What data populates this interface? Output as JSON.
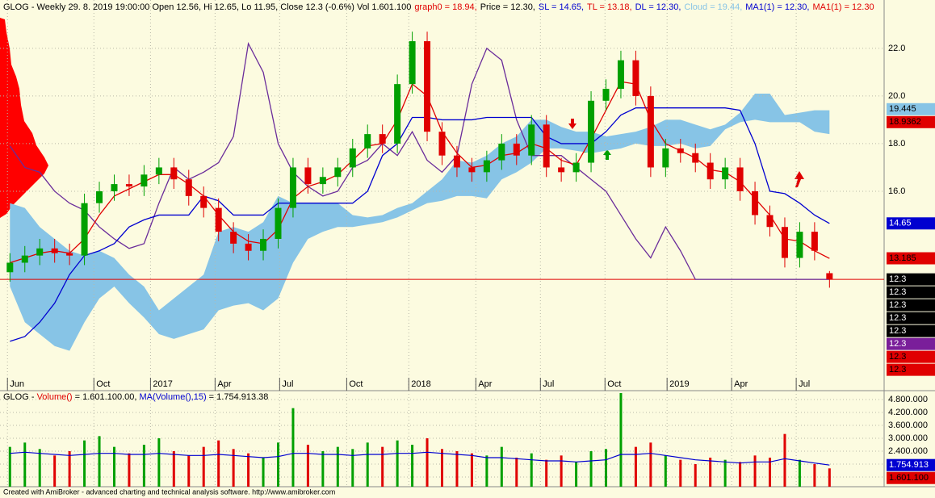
{
  "chart_data": [
    {
      "type": "candlestick",
      "header": "GLOG - Weekly 29. 8. 2019 19:00:00 Open 12.56, Hi 12.65, Lo 11.95, Close 12.3 (-0.6%) Vol 1.601.100",
      "header_items": [
        {
          "text": "graph0 = 18.94,",
          "color": "#e00000"
        },
        {
          "text": "Price = 12.30,",
          "color": "#000000"
        },
        {
          "text": "SL = 14.65,",
          "color": "#0000d0"
        },
        {
          "text": "TL = 13.18,",
          "color": "#e00000"
        },
        {
          "text": "DL = 12.30,",
          "color": "#0000d0"
        },
        {
          "text": "Cloud = 19.44,",
          "color": "#87c4e6"
        },
        {
          "text": "MA1(1) = 12.30,",
          "color": "#0000d0"
        },
        {
          "text": "MA1(1) = 12.30",
          "color": "#e00000"
        }
      ],
      "x": [
        1,
        4,
        7,
        10,
        13,
        16,
        19,
        22,
        25,
        28,
        31,
        34,
        37,
        40,
        43,
        46,
        49,
        52,
        55,
        58,
        61,
        64,
        67,
        70,
        73,
        76,
        79,
        82,
        85,
        88,
        91,
        94,
        97,
        100,
        103,
        106,
        109,
        112,
        115,
        118,
        121,
        124,
        127,
        130,
        133,
        136,
        139,
        142,
        145,
        148,
        151,
        154,
        157,
        160,
        163,
        166
      ],
      "open": [
        12.6,
        13.0,
        13.3,
        13.6,
        13.4,
        13.3,
        15.5,
        16.0,
        16.3,
        16.2,
        16.7,
        17.0,
        16.5,
        15.8,
        15.3,
        14.3,
        13.8,
        13.5,
        14.0,
        15.3,
        17.0,
        16.3,
        16.6,
        17.0,
        17.8,
        18.4,
        18.0,
        20.5,
        22.3,
        18.5,
        17.5,
        17.0,
        16.8,
        17.3,
        18.0,
        17.5,
        18.8,
        17.0,
        16.8,
        17.2,
        19.8,
        20.3,
        21.5,
        20.0,
        17.0,
        17.8,
        17.6,
        17.2,
        16.5,
        17.0,
        16.0,
        15.0,
        14.5,
        13.2,
        14.3,
        12.56
      ],
      "high": [
        13.4,
        13.7,
        14.0,
        14.0,
        13.8,
        15.9,
        16.4,
        16.7,
        16.7,
        17.1,
        17.4,
        17.4,
        16.9,
        16.2,
        15.7,
        14.7,
        14.2,
        14.4,
        15.7,
        17.4,
        17.4,
        17.0,
        17.4,
        18.2,
        18.8,
        18.8,
        20.9,
        22.7,
        22.7,
        18.9,
        17.9,
        17.4,
        17.7,
        18.4,
        18.4,
        19.2,
        19.2,
        17.4,
        17.6,
        20.2,
        20.7,
        21.9,
        21.9,
        20.4,
        18.2,
        18.2,
        18.0,
        17.6,
        17.4,
        17.4,
        16.4,
        15.4,
        14.9,
        14.7,
        14.7,
        12.65
      ],
      "low": [
        12.2,
        12.6,
        12.9,
        13.0,
        12.9,
        12.9,
        15.1,
        15.6,
        15.8,
        15.8,
        16.3,
        16.1,
        15.4,
        14.9,
        13.9,
        13.4,
        13.1,
        13.1,
        13.6,
        14.9,
        15.9,
        15.9,
        16.2,
        16.6,
        17.4,
        17.6,
        17.6,
        20.1,
        18.1,
        17.1,
        16.6,
        16.4,
        16.4,
        16.9,
        17.1,
        17.1,
        16.6,
        16.4,
        16.4,
        16.8,
        19.4,
        19.9,
        19.6,
        16.6,
        16.6,
        17.2,
        16.8,
        16.1,
        16.1,
        15.6,
        14.6,
        14.1,
        12.8,
        12.8,
        13.1,
        11.95
      ],
      "close": [
        13.0,
        13.3,
        13.6,
        13.4,
        13.3,
        15.5,
        16.0,
        16.3,
        16.2,
        16.7,
        17.0,
        16.5,
        15.8,
        15.3,
        14.3,
        13.8,
        13.5,
        14.0,
        15.3,
        17.0,
        16.3,
        16.6,
        17.0,
        17.8,
        18.4,
        18.0,
        20.5,
        22.3,
        18.5,
        17.5,
        17.0,
        16.8,
        17.3,
        18.0,
        17.5,
        18.8,
        17.0,
        16.8,
        17.2,
        19.8,
        20.3,
        21.5,
        20.0,
        17.0,
        17.8,
        17.6,
        17.2,
        16.5,
        17.0,
        16.0,
        15.0,
        14.5,
        13.2,
        14.3,
        13.5,
        12.3
      ],
      "up_color": "#00a000",
      "down_color": "#e00000",
      "cloud": {
        "color": "#87c4e6",
        "upper": [
          15.5,
          15.3,
          14.5,
          14.0,
          13.5,
          13.3,
          13.5,
          13.2,
          12.5,
          12.0,
          11.0,
          11.5,
          12.0,
          12.5,
          14.3,
          14.5,
          14.3,
          14.7,
          15.8,
          15.5,
          15.5,
          15.5,
          15.5,
          15.0,
          14.9,
          15.0,
          15.3,
          15.5,
          16.0,
          16.5,
          17.3,
          17.2,
          17.5,
          18.0,
          18.3,
          19.0,
          19.0,
          18.7,
          18.5,
          18.5,
          18.3,
          18.4,
          18.5,
          18.7,
          19.0,
          19.0,
          18.8,
          18.6,
          18.8,
          19.3,
          20.1,
          20.1,
          19.2,
          19.3,
          19.4,
          19.4
        ],
        "lower": [
          12.0,
          10.5,
          10.0,
          9.5,
          9.3,
          10.5,
          11.5,
          12.0,
          11.3,
          10.7,
          10.0,
          9.8,
          10.0,
          10.2,
          11.0,
          11.2,
          11.3,
          11.0,
          11.5,
          13.0,
          14.0,
          14.3,
          14.5,
          14.5,
          14.6,
          14.7,
          14.9,
          15.2,
          15.5,
          15.6,
          15.8,
          15.8,
          15.7,
          16.5,
          16.8,
          17.2,
          17.8,
          17.8,
          17.7,
          17.6,
          17.7,
          17.8,
          18.0,
          17.9,
          17.9,
          18.0,
          17.8,
          17.9,
          18.6,
          18.9,
          19.0,
          18.9,
          18.9,
          18.9,
          18.5,
          18.4
        ]
      },
      "series": [
        {
          "color": "#6a2c9a",
          "values": [
            17.9,
            17.0,
            16.8,
            16.0,
            15.5,
            15.2,
            14.5,
            14.0,
            13.6,
            13.8,
            15.5,
            17.0,
            16.5,
            16.8,
            17.2,
            18.3,
            22.2,
            21.0,
            18.0,
            16.8,
            16.2,
            15.8,
            16.0,
            17.0,
            17.3,
            18.0,
            17.5,
            18.5,
            17.3,
            16.8,
            17.5,
            20.5,
            22.0,
            21.5,
            19.0,
            17.5,
            17.5,
            17.5,
            17.0,
            16.5,
            16.0,
            15.0,
            14.0,
            13.2,
            14.5,
            13.5,
            12.3,
            12.3,
            12.3,
            12.3,
            12.3,
            12.3,
            12.3,
            12.3,
            12.3,
            12.3
          ]
        },
        {
          "color": "#0000d0",
          "values": [
            9.7,
            9.9,
            10.5,
            11.3,
            12.5,
            13.3,
            13.5,
            13.8,
            14.5,
            14.8,
            15.0,
            15.0,
            15.0,
            15.8,
            15.6,
            15.0,
            15.0,
            15.0,
            15.5,
            15.5,
            15.5,
            15.5,
            15.5,
            15.5,
            16.0,
            17.5,
            18.0,
            19.1,
            19.1,
            19.0,
            19.0,
            19.0,
            19.1,
            19.1,
            19.1,
            19.1,
            18.3,
            18.0,
            18.0,
            18.0,
            18.5,
            19.2,
            19.5,
            19.5,
            19.5,
            19.5,
            19.5,
            19.5,
            19.5,
            19.4,
            18.0,
            16.0,
            15.9,
            15.5,
            15.0,
            14.65
          ]
        },
        {
          "color": "#e00000",
          "values": [
            13.0,
            13.2,
            13.4,
            13.5,
            13.4,
            14.0,
            15.0,
            15.8,
            16.1,
            16.4,
            16.7,
            16.7,
            16.3,
            15.8,
            15.0,
            14.3,
            13.9,
            13.8,
            14.4,
            15.7,
            16.2,
            16.4,
            16.7,
            17.3,
            17.9,
            18.0,
            19.0,
            20.5,
            20.0,
            18.5,
            17.6,
            17.0,
            17.1,
            17.5,
            17.6,
            18.0,
            17.8,
            17.3,
            17.1,
            18.2,
            19.4,
            20.6,
            20.5,
            19.0,
            18.0,
            17.7,
            17.4,
            16.9,
            16.8,
            16.4,
            15.7,
            15.0,
            14.0,
            13.9,
            13.5,
            13.18
          ]
        }
      ],
      "price_line": 12.3,
      "price_line_color": "#e00000",
      "price_labels": [
        {
          "value": 19.445,
          "bg": "#87c4e6",
          "fg": "#000000"
        },
        {
          "value": 18.9362,
          "bg": "#e00000",
          "fg": "#000000"
        },
        {
          "value": 14.65,
          "bg": "#0000d0",
          "fg": "#ffffff"
        },
        {
          "value": 13.185,
          "bg": "#e00000",
          "fg": "#000000"
        },
        {
          "value": 12.3,
          "bg": "#000000",
          "fg": "#ffffff"
        },
        {
          "value": 12.3,
          "bg": "#000000",
          "fg": "#ffffff"
        },
        {
          "value": 12.3,
          "bg": "#000000",
          "fg": "#ffffff"
        },
        {
          "value": 12.3,
          "bg": "#000000",
          "fg": "#ffffff"
        },
        {
          "value": 12.3,
          "bg": "#000000",
          "fg": "#ffffff"
        },
        {
          "value": 12.3,
          "bg": "#7a1e9a",
          "fg": "#ffffff"
        },
        {
          "value": 12.3,
          "bg": "#e00000",
          "fg": "#000000"
        },
        {
          "value": 12.3,
          "bg": "#e00000",
          "fg": "#000000"
        }
      ],
      "xlim": [
        -1,
        177
      ],
      "xticks": [
        {
          "value": 0.5,
          "label": "Jun"
        },
        {
          "value": 17.9,
          "label": "Oct"
        },
        {
          "value": 29.3,
          "label": "2017"
        },
        {
          "value": 42.3,
          "label": "Apr"
        },
        {
          "value": 55.3,
          "label": "Jul"
        },
        {
          "value": 68.8,
          "label": "Oct"
        },
        {
          "value": 81.3,
          "label": "2018"
        },
        {
          "value": 94.8,
          "label": "Apr"
        },
        {
          "value": 107.8,
          "label": "Jul"
        },
        {
          "value": 120.8,
          "label": "Oct"
        },
        {
          "value": 133.3,
          "label": "2019"
        },
        {
          "value": 146.3,
          "label": "Apr"
        },
        {
          "value": 159.3,
          "label": "Jul"
        }
      ],
      "ylim": [
        8.17,
        24.03
      ],
      "yticks": [
        {
          "value": 16,
          "label": "16.0"
        },
        {
          "value": 18,
          "label": "18.0"
        },
        {
          "value": 20,
          "label": "20.0"
        },
        {
          "value": 22,
          "label": "22.0"
        }
      ],
      "grid": true
    },
    {
      "type": "bar",
      "header_items": [
        {
          "text": "GLOG - ",
          "color": "#000000"
        },
        {
          "text": "Volume()",
          "color": "#e00000"
        },
        {
          "text": " = 1.601.100.00, ",
          "color": "#000000"
        },
        {
          "text": "MA(Volume(),15)",
          "color": "#0000d0"
        },
        {
          "text": " = 1.754.913.38",
          "color": "#000000"
        }
      ],
      "values": [
        2600000,
        2800000,
        2500000,
        2200000,
        2400000,
        2900000,
        3100000,
        2600000,
        2300000,
        2700000,
        3000000,
        2400000,
        2200000,
        2600000,
        2900000,
        2500000,
        2300000,
        2100000,
        2800000,
        4400000,
        2700000,
        2400000,
        2600000,
        2500000,
        2800000,
        2600000,
        2900000,
        2700000,
        3000000,
        2500000,
        2400000,
        2300000,
        2200000,
        2600000,
        2100000,
        2300000,
        2000000,
        2200000,
        1900000,
        2400000,
        2500000,
        5100000,
        2600000,
        2800000,
        2200000,
        2000000,
        1800000,
        2100000,
        2000000,
        1900000,
        2200000,
        2100000,
        3200000,
        2000000,
        1800000,
        1601100
      ],
      "up_color": "#00a000",
      "down_color": "#e00000",
      "series": [
        {
          "color": "#0000d0",
          "values": [
            2300000,
            2350000,
            2300000,
            2250000,
            2200000,
            2250000,
            2300000,
            2300000,
            2250000,
            2250000,
            2300000,
            2250000,
            2200000,
            2200000,
            2250000,
            2200000,
            2150000,
            2100000,
            2150000,
            2300000,
            2300000,
            2250000,
            2250000,
            2200000,
            2250000,
            2250000,
            2300000,
            2300000,
            2350000,
            2300000,
            2250000,
            2200000,
            2100000,
            2100000,
            2050000,
            2000000,
            1950000,
            1950000,
            1900000,
            1950000,
            2000000,
            2250000,
            2250000,
            2300000,
            2200000,
            2100000,
            2000000,
            1950000,
            1900000,
            1850000,
            1900000,
            1900000,
            2050000,
            1950000,
            1850000,
            1754913.38
          ]
        }
      ],
      "value_labels": [
        {
          "value": 1754913,
          "label": "1.754.913",
          "bg": "#0000d0",
          "fg": "#ffffff"
        },
        {
          "value": 1601100,
          "label": "1.601.100",
          "bg": "#e00000",
          "fg": "#000000"
        }
      ],
      "ylim": [
        750000,
        5212500
      ],
      "yticks": [
        {
          "value": 1200000,
          "label": "1.200.000"
        },
        {
          "value": 1800000,
          "label": "1.800.000"
        },
        {
          "value": 2400000,
          "label": "2.400.000"
        },
        {
          "value": 3000000,
          "label": "3.000.000"
        },
        {
          "value": 3600000,
          "label": "3.600.000"
        },
        {
          "value": 4200000,
          "label": "4.200.000"
        },
        {
          "value": 4800000,
          "label": "4.800.000"
        }
      ],
      "grid": true
    }
  ],
  "footer": "Created with AmiBroker - advanced charting and technical analysis software. http://www.amibroker.com"
}
